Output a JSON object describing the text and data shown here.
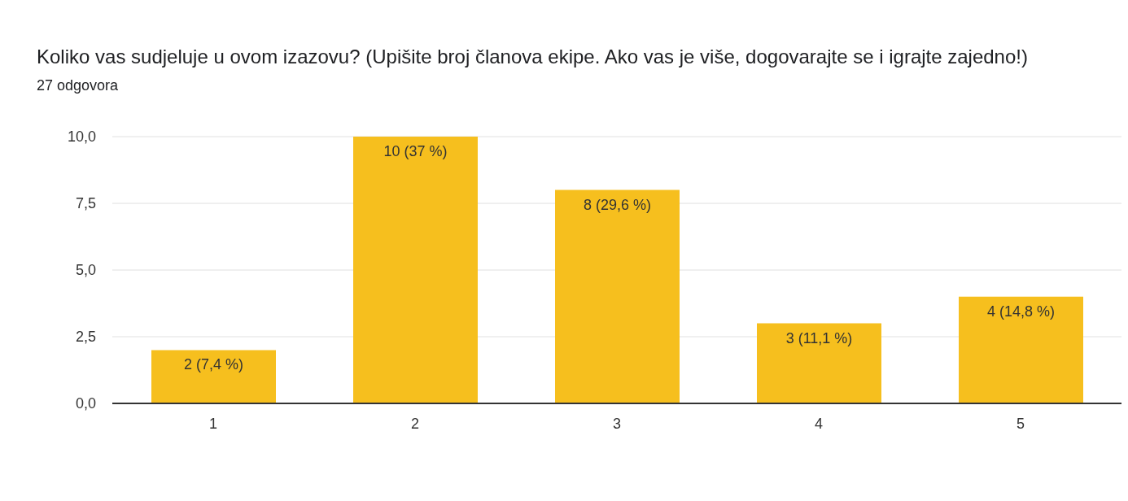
{
  "chart_data": {
    "type": "bar",
    "title": "Koliko vas sudjeluje u ovom izazovu? (Upišite broj članova ekipe. Ako vas je više, dogovarajte se i igrajte zajedno!)",
    "subtitle": "27 odgovora",
    "categories": [
      "1",
      "2",
      "3",
      "4",
      "5"
    ],
    "values": [
      2,
      10,
      8,
      3,
      4
    ],
    "color": "#f6bf1e",
    "value_labels": [
      "2 (7,4 %)",
      "10 (37 %)",
      "8 (29,6 %)",
      "3 (11,1 %)",
      "4 (14,8 %)"
    ],
    "ylim": [
      0,
      10
    ],
    "yticks": [
      {
        "value": 0,
        "label": "0,0"
      },
      {
        "value": 2.5,
        "label": "2,5"
      },
      {
        "value": 5,
        "label": "5,0"
      },
      {
        "value": 7.5,
        "label": "7,5"
      },
      {
        "value": 10,
        "label": "10,0"
      }
    ],
    "grid": "y",
    "legend": false
  }
}
